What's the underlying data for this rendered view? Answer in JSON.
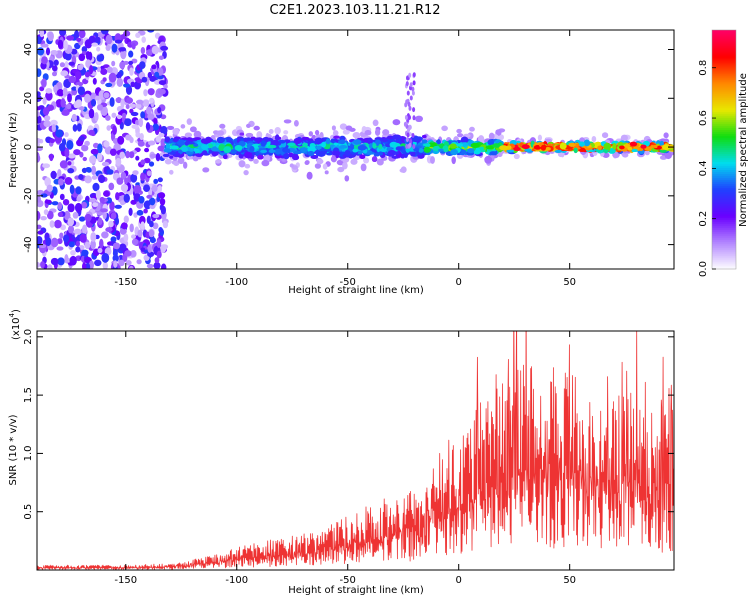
{
  "chart_data": [
    {
      "type": "heatmap",
      "title": "C2E1.2023.103.11.21.R12",
      "xlabel": "Height of straight line (km)",
      "ylabel": "Frequency (Hz)",
      "xlim": [
        -190,
        97
      ],
      "ylim": [
        -50,
        48
      ],
      "xticks": [
        -150,
        -100,
        -50,
        0,
        50
      ],
      "yticks": [
        -40,
        -20,
        0,
        20,
        40
      ],
      "colorbar": {
        "label": "Normalized spectral amplitude",
        "range": [
          0.0,
          0.95
        ],
        "ticks": [
          0.0,
          0.2,
          0.4,
          0.6,
          0.8
        ],
        "tick_labels": [
          "0.0",
          "0.2",
          "0.4",
          "0.6",
          "0.8"
        ],
        "colormap": [
          "#ffffff",
          "#b388ff",
          "#6a00ff",
          "#2040ff",
          "#00ddee",
          "#10dd10",
          "#e8e800",
          "#ff8800",
          "#ff0000",
          "#ff0066"
        ]
      },
      "regions": [
        {
          "x": [
            -190,
            -132
          ],
          "freq_spread_hz": 48,
          "amplitude": "0.1-0.3",
          "pattern": "scattered"
        },
        {
          "x": [
            -132,
            -15
          ],
          "freq_spread_hz": 7,
          "amplitude": "0.2-0.45",
          "pattern": "band"
        },
        {
          "x": [
            -25,
            -20
          ],
          "freq_spread_hz": 30,
          "amplitude": "0.1-0.2",
          "pattern": "spike"
        },
        {
          "x": [
            -15,
            20
          ],
          "freq_spread_hz": 5,
          "amplitude": "0.3-0.5",
          "pattern": "band"
        },
        {
          "x": [
            20,
            97
          ],
          "freq_spread_hz": 3,
          "amplitude": "0.5-0.9",
          "pattern": "narrow band"
        }
      ]
    },
    {
      "type": "line",
      "xlabel": "Height of straight line (km)",
      "ylabel": "SNR (10 * v/v)",
      "yscale_label": "(x10",
      "yscale_exp": "4",
      "yscale_close": ")",
      "xlim": [
        -190,
        97
      ],
      "ylim": [
        0,
        2.05
      ],
      "xticks": [
        -150,
        -100,
        -50,
        0,
        50
      ],
      "yticks": [
        0.5,
        1.0,
        1.5,
        2.0
      ],
      "ytick_labels": [
        "0.5",
        "1.0",
        "1.5",
        "2.0"
      ],
      "color": "#ee3333",
      "series": [
        {
          "x": [
            -190,
            -170,
            -150,
            -130,
            -120,
            -110,
            -100,
            -90,
            -80,
            -70,
            -60,
            -50,
            -40,
            -30,
            -20,
            -16,
            -14,
            -10,
            0,
            10,
            20,
            30,
            40,
            50,
            60,
            70,
            80,
            90,
            97
          ],
          "y": [
            0.03,
            0.03,
            0.03,
            0.04,
            0.07,
            0.1,
            0.14,
            0.17,
            0.2,
            0.22,
            0.27,
            0.33,
            0.4,
            0.46,
            0.5,
            0.48,
            0.7,
            0.75,
            0.85,
            1.05,
            1.2,
            1.3,
            1.25,
            1.2,
            1.15,
            1.1,
            1.1,
            1.0,
            1.0
          ]
        }
      ]
    }
  ]
}
